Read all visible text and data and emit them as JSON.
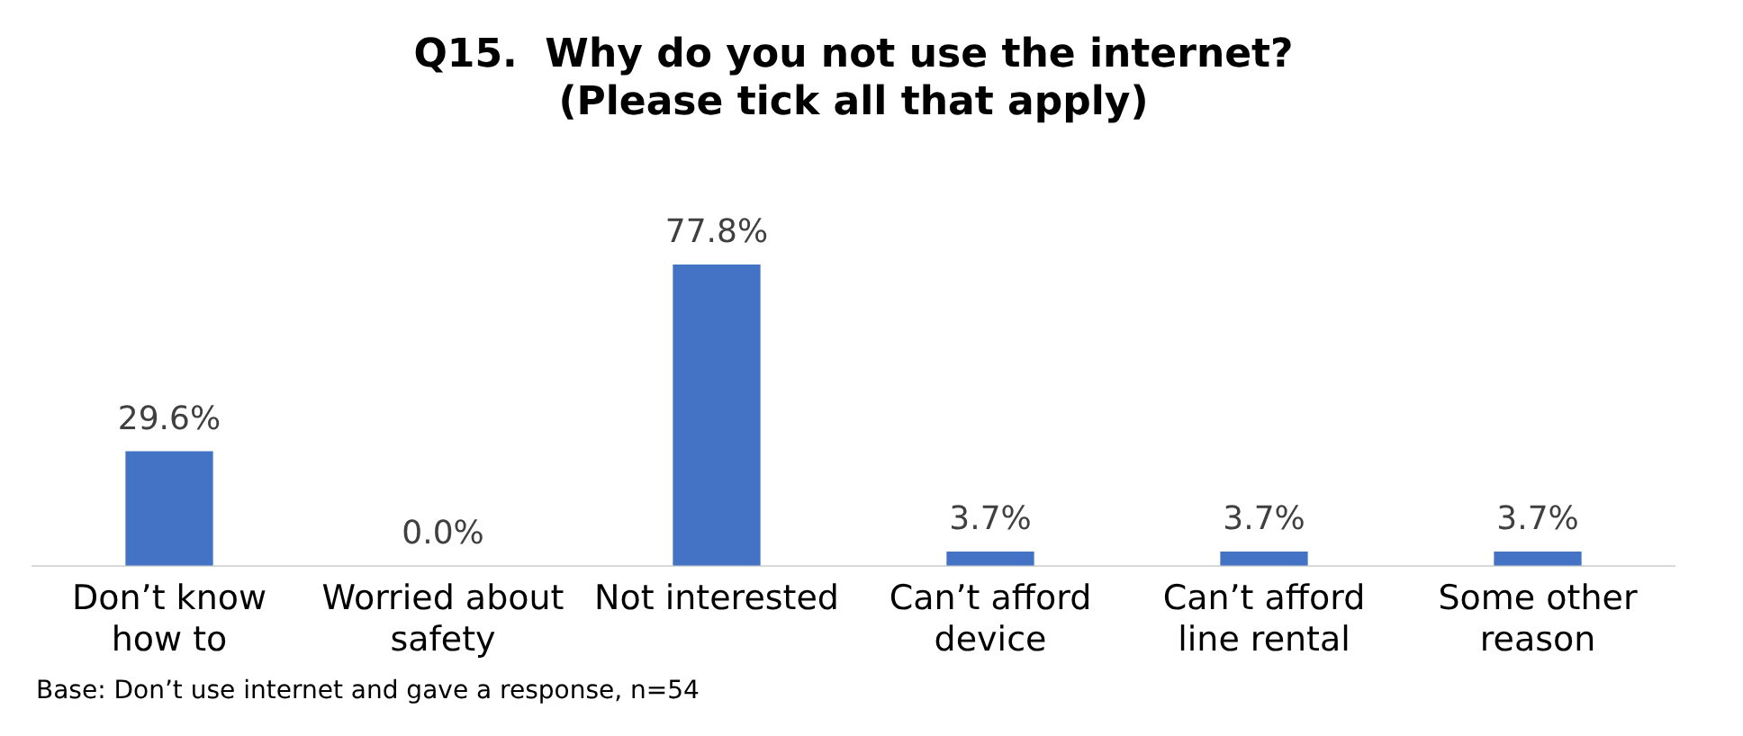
{
  "chart_data": {
    "type": "bar",
    "title": "Q15.  Why do you not use the internet?\n(Please tick all that apply)",
    "categories": [
      "Don’t know how to",
      "Worried about safety",
      "Not interested",
      "Can’t afford device",
      "Can’t afford line rental",
      "Some other reason"
    ],
    "values": [
      29.6,
      0.0,
      77.8,
      3.7,
      3.7,
      3.7
    ],
    "value_labels": [
      "29.6%",
      "0.0%",
      "77.8%",
      "3.7%",
      "3.7%",
      "3.7%"
    ],
    "color": "#4472c4",
    "grid": false,
    "legend": false,
    "annotations": [
      "Base: Don’t use internet and gave a response, n=54"
    ]
  }
}
